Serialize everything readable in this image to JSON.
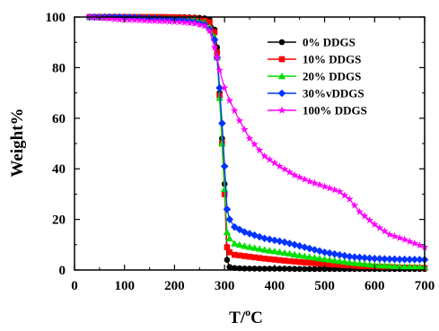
{
  "chart_data": {
    "type": "line",
    "xlabel_main": "T/",
    "xlabel_sup": "o",
    "xlabel_unit": "C",
    "ylabel": "Weight%",
    "xlim": [
      0,
      700
    ],
    "ylim": [
      0,
      100
    ],
    "xticks": [
      0,
      100,
      200,
      300,
      400,
      500,
      600,
      700
    ],
    "yticks": [
      0,
      20,
      40,
      60,
      80,
      100
    ],
    "grid": false,
    "legend": "top-right",
    "series": [
      {
        "name": "0% DDGS",
        "color": "#000000",
        "marker": "circle",
        "x": [
          30,
          60,
          90,
          120,
          150,
          180,
          210,
          240,
          260,
          270,
          280,
          285,
          290,
          295,
          300,
          305,
          310,
          320,
          340,
          380,
          420,
          460,
          500,
          550,
          600,
          650,
          700
        ],
        "y": [
          100,
          100,
          100,
          100,
          100,
          100,
          100,
          99.8,
          99.5,
          99,
          95,
          88,
          70,
          52,
          34,
          4,
          1.2,
          0.8,
          0.6,
          0.5,
          0.5,
          0.4,
          0.4,
          0.4,
          0.4,
          0.4,
          0.4
        ]
      },
      {
        "name": "10% DDGS",
        "color": "#ff0000",
        "marker": "square",
        "x": [
          30,
          60,
          90,
          120,
          150,
          180,
          210,
          240,
          260,
          270,
          280,
          285,
          290,
          295,
          300,
          305,
          310,
          320,
          340,
          380,
          420,
          460,
          500,
          550,
          600,
          650,
          700
        ],
        "y": [
          100,
          100,
          100,
          100,
          100,
          100,
          99.8,
          99.5,
          99,
          98,
          94,
          86,
          69,
          50,
          30,
          9,
          7,
          6,
          5.5,
          4.5,
          3.7,
          3,
          2.4,
          1.8,
          1.3,
          1,
          0.8
        ]
      },
      {
        "name": "20% DDGS",
        "color": "#00e000",
        "marker": "triangle",
        "x": [
          30,
          60,
          90,
          120,
          150,
          180,
          210,
          240,
          260,
          270,
          280,
          285,
          290,
          295,
          300,
          305,
          310,
          320,
          340,
          380,
          420,
          460,
          500,
          550,
          600,
          650,
          700
        ],
        "y": [
          100,
          100,
          100,
          100,
          99.8,
          99.6,
          99.3,
          99,
          98,
          96,
          92,
          84,
          68,
          50,
          32,
          15,
          12.5,
          10.5,
          9.5,
          8,
          6.8,
          5.5,
          4.3,
          3,
          2,
          1.4,
          1.2
        ]
      },
      {
        "name": "30%vDDGS",
        "color": "#0033ff",
        "marker": "diamond",
        "x": [
          30,
          60,
          90,
          120,
          150,
          180,
          210,
          240,
          260,
          270,
          280,
          285,
          290,
          295,
          300,
          305,
          310,
          320,
          340,
          380,
          420,
          460,
          500,
          550,
          600,
          650,
          700
        ],
        "y": [
          100,
          100,
          100,
          99.8,
          99.5,
          99.2,
          98.8,
          98,
          97,
          95,
          91,
          84,
          72,
          58,
          41,
          24,
          20,
          17,
          15,
          12.5,
          11,
          9,
          7,
          5.3,
          4.5,
          4.2,
          4.1
        ]
      },
      {
        "name": "100% DDGS",
        "color": "#ff00ff",
        "marker": "star",
        "x": [
          30,
          60,
          90,
          120,
          150,
          180,
          210,
          240,
          260,
          270,
          280,
          285,
          290,
          300,
          310,
          330,
          350,
          380,
          410,
          440,
          470,
          500,
          530,
          550,
          570,
          600,
          630,
          660,
          700
        ],
        "y": [
          100,
          99.5,
          99,
          98.8,
          98.5,
          98.3,
          98,
          97.5,
          96.5,
          94.5,
          88,
          84,
          79,
          72,
          67,
          59,
          52,
          45,
          41,
          37.5,
          35,
          33,
          31,
          28,
          23,
          18,
          14,
          12,
          9
        ]
      }
    ]
  }
}
